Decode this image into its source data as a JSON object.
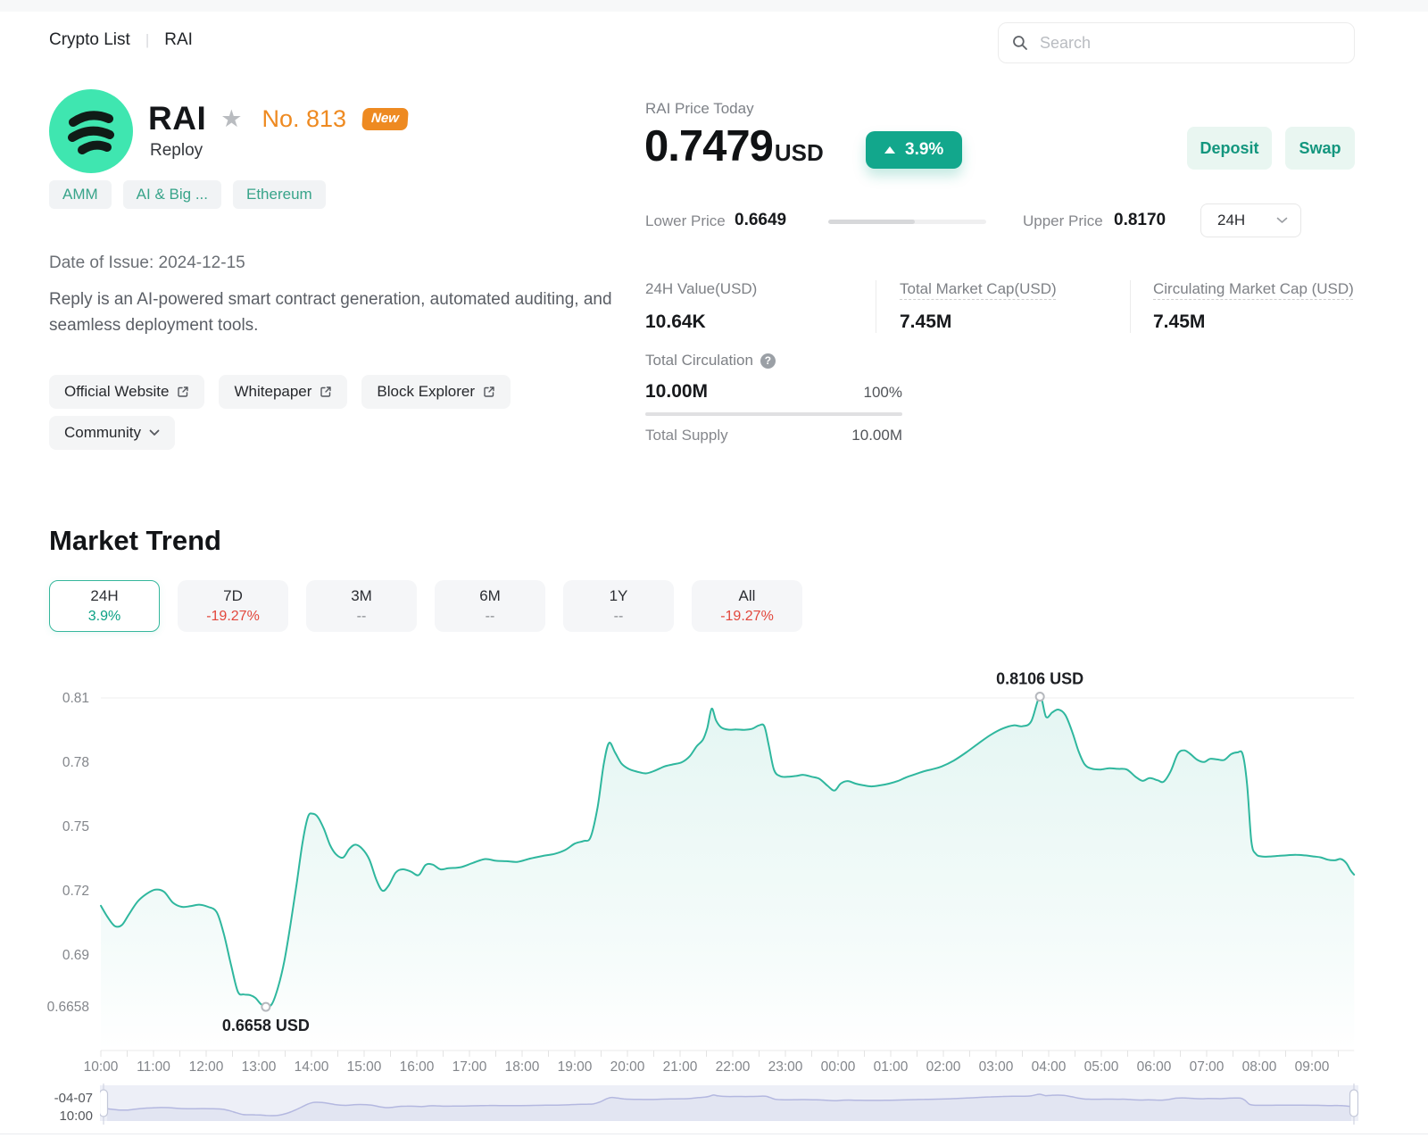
{
  "breadcrumb": {
    "root": "Crypto List",
    "divider": "|",
    "current": "RAI"
  },
  "search": {
    "placeholder": "Search"
  },
  "token": {
    "symbol": "RAI",
    "name": "Reploy",
    "rank": "No. 813",
    "new_badge": "New",
    "tags": [
      "AMM",
      "AI & Big ...",
      "Ethereum"
    ]
  },
  "price": {
    "label": "RAI Price Today",
    "value": "0.7479",
    "currency": "USD",
    "change": "3.9%",
    "change_direction": "up"
  },
  "actions": {
    "deposit": "Deposit",
    "swap": "Swap"
  },
  "range": {
    "lower_label": "Lower Price",
    "lower": "0.6649",
    "upper_label": "Upper Price",
    "upper": "0.8170",
    "period": "24H",
    "progress_pct": 55
  },
  "issue": "Date of Issue: 2024-12-15",
  "description": "Reply is an AI-powered smart contract generation, automated auditing, and seamless deployment tools.",
  "links": [
    "Official Website",
    "Whitepaper",
    "Block Explorer"
  ],
  "community_label": "Community",
  "stats": [
    {
      "label": "24H Value(USD)",
      "value": "10.64K",
      "underline": false
    },
    {
      "label": "Total Market Cap(USD)",
      "value": "7.45M",
      "underline": true
    },
    {
      "label": "Circulating Market Cap (USD)",
      "value": "7.45M",
      "underline": true
    }
  ],
  "circulation": {
    "label": "Total Circulation",
    "value": "10.00M",
    "percent": "100%",
    "percent_fill": 100,
    "supply_label": "Total Supply",
    "supply": "10.00M"
  },
  "market_trend": {
    "title": "Market Trend",
    "tabs": [
      {
        "label": "24H",
        "sub": "3.9%",
        "state": "up",
        "active": true
      },
      {
        "label": "7D",
        "sub": "-19.27%",
        "state": "down",
        "active": false
      },
      {
        "label": "3M",
        "sub": "--",
        "state": "flat",
        "active": false
      },
      {
        "label": "6M",
        "sub": "--",
        "state": "flat",
        "active": false
      },
      {
        "label": "1Y",
        "sub": "--",
        "state": "flat",
        "active": false
      },
      {
        "label": "All",
        "sub": "-19.27%",
        "state": "down",
        "active": false
      }
    ]
  },
  "chart_data": {
    "type": "area",
    "title": "RAI price, 24H",
    "xlabel": "",
    "ylabel": "USD",
    "x_unit": "minutes from 10:00",
    "x_labels": [
      "10:00",
      "11:00",
      "12:00",
      "13:00",
      "14:00",
      "15:00",
      "16:00",
      "17:00",
      "18:00",
      "19:00",
      "20:00",
      "21:00",
      "22:00",
      "23:00",
      "00:00",
      "01:00",
      "02:00",
      "03:00",
      "04:00",
      "05:00",
      "06:00",
      "07:00",
      "08:00",
      "09:00"
    ],
    "y_ticks": [
      {
        "label": "0.81",
        "value": 0.81
      },
      {
        "label": "0.78",
        "value": 0.78
      },
      {
        "label": "0.75",
        "value": 0.75
      },
      {
        "label": "0.72",
        "value": 0.72
      },
      {
        "label": "0.69",
        "value": 0.69
      },
      {
        "label": "0.6658",
        "value": 0.6658
      }
    ],
    "ylim": [
      0.6454,
      0.8225
    ],
    "grid": "top-line-only",
    "line_color": "#2fb79e",
    "min_marker": {
      "t": 188,
      "value": 0.6658,
      "label": "0.6658 USD"
    },
    "max_marker": {
      "t": 1070,
      "value": 0.8106,
      "label": "0.8106 USD"
    },
    "points": [
      [
        0,
        0.713
      ],
      [
        8,
        0.7075
      ],
      [
        16,
        0.7035
      ],
      [
        24,
        0.704
      ],
      [
        32,
        0.709
      ],
      [
        42,
        0.715
      ],
      [
        52,
        0.7185
      ],
      [
        62,
        0.7205
      ],
      [
        72,
        0.7195
      ],
      [
        82,
        0.7145
      ],
      [
        92,
        0.7125
      ],
      [
        102,
        0.7128
      ],
      [
        112,
        0.7135
      ],
      [
        122,
        0.7125
      ],
      [
        132,
        0.71
      ],
      [
        140,
        0.7
      ],
      [
        148,
        0.686
      ],
      [
        156,
        0.673
      ],
      [
        163,
        0.6716
      ],
      [
        170,
        0.6713
      ],
      [
        176,
        0.67
      ],
      [
        182,
        0.6672
      ],
      [
        188,
        0.6658
      ],
      [
        195,
        0.6672
      ],
      [
        202,
        0.675
      ],
      [
        209,
        0.687
      ],
      [
        216,
        0.704
      ],
      [
        223,
        0.723
      ],
      [
        230,
        0.743
      ],
      [
        236,
        0.7545
      ],
      [
        241,
        0.756
      ],
      [
        247,
        0.7545
      ],
      [
        254,
        0.749
      ],
      [
        261,
        0.7415
      ],
      [
        268,
        0.737
      ],
      [
        276,
        0.7355
      ],
      [
        283,
        0.7395
      ],
      [
        290,
        0.7415
      ],
      [
        298,
        0.7395
      ],
      [
        306,
        0.7345
      ],
      [
        314,
        0.725
      ],
      [
        321,
        0.72
      ],
      [
        328,
        0.7225
      ],
      [
        336,
        0.7285
      ],
      [
        344,
        0.73
      ],
      [
        353,
        0.729
      ],
      [
        362,
        0.7273
      ],
      [
        370,
        0.732
      ],
      [
        378,
        0.7322
      ],
      [
        387,
        0.73
      ],
      [
        396,
        0.7305
      ],
      [
        410,
        0.731
      ],
      [
        424,
        0.733
      ],
      [
        438,
        0.7348
      ],
      [
        450,
        0.734
      ],
      [
        462,
        0.7338
      ],
      [
        475,
        0.7335
      ],
      [
        489,
        0.735
      ],
      [
        503,
        0.7362
      ],
      [
        517,
        0.7372
      ],
      [
        529,
        0.739
      ],
      [
        540,
        0.742
      ],
      [
        550,
        0.7432
      ],
      [
        558,
        0.745
      ],
      [
        566,
        0.759
      ],
      [
        573,
        0.779
      ],
      [
        579,
        0.789
      ],
      [
        586,
        0.7845
      ],
      [
        593,
        0.7795
      ],
      [
        601,
        0.777
      ],
      [
        611,
        0.7756
      ],
      [
        621,
        0.7748
      ],
      [
        631,
        0.776
      ],
      [
        642,
        0.778
      ],
      [
        652,
        0.779
      ],
      [
        662,
        0.78
      ],
      [
        671,
        0.7828
      ],
      [
        679,
        0.7875
      ],
      [
        686,
        0.7905
      ],
      [
        691,
        0.796
      ],
      [
        696,
        0.805
      ],
      [
        701,
        0.7995
      ],
      [
        707,
        0.7962
      ],
      [
        715,
        0.7952
      ],
      [
        724,
        0.7953
      ],
      [
        733,
        0.7951
      ],
      [
        742,
        0.7956
      ],
      [
        750,
        0.7972
      ],
      [
        756,
        0.7968
      ],
      [
        761,
        0.788
      ],
      [
        767,
        0.7765
      ],
      [
        774,
        0.7735
      ],
      [
        783,
        0.7732
      ],
      [
        792,
        0.7736
      ],
      [
        801,
        0.7741
      ],
      [
        810,
        0.7732
      ],
      [
        819,
        0.7722
      ],
      [
        828,
        0.769
      ],
      [
        836,
        0.7668
      ],
      [
        843,
        0.77
      ],
      [
        851,
        0.7712
      ],
      [
        860,
        0.77
      ],
      [
        869,
        0.7692
      ],
      [
        878,
        0.7687
      ],
      [
        888,
        0.7692
      ],
      [
        898,
        0.77
      ],
      [
        908,
        0.7712
      ],
      [
        918,
        0.773
      ],
      [
        928,
        0.7744
      ],
      [
        938,
        0.7758
      ],
      [
        948,
        0.7768
      ],
      [
        958,
        0.778
      ],
      [
        972,
        0.7808
      ],
      [
        986,
        0.7846
      ],
      [
        1000,
        0.7888
      ],
      [
        1014,
        0.7928
      ],
      [
        1028,
        0.7958
      ],
      [
        1040,
        0.7972
      ],
      [
        1050,
        0.7968
      ],
      [
        1060,
        0.799
      ],
      [
        1070,
        0.8106
      ],
      [
        1077,
        0.8012
      ],
      [
        1084,
        0.8032
      ],
      [
        1091,
        0.8046
      ],
      [
        1099,
        0.802
      ],
      [
        1107,
        0.794
      ],
      [
        1114,
        0.7852
      ],
      [
        1121,
        0.779
      ],
      [
        1129,
        0.777
      ],
      [
        1139,
        0.7766
      ],
      [
        1149,
        0.7772
      ],
      [
        1159,
        0.7769
      ],
      [
        1169,
        0.7766
      ],
      [
        1179,
        0.7732
      ],
      [
        1187,
        0.7713
      ],
      [
        1195,
        0.7726
      ],
      [
        1204,
        0.7716
      ],
      [
        1211,
        0.7709
      ],
      [
        1219,
        0.7758
      ],
      [
        1227,
        0.7838
      ],
      [
        1234,
        0.7856
      ],
      [
        1241,
        0.784
      ],
      [
        1249,
        0.7812
      ],
      [
        1257,
        0.7801
      ],
      [
        1264,
        0.7816
      ],
      [
        1272,
        0.7813
      ],
      [
        1280,
        0.7811
      ],
      [
        1288,
        0.7838
      ],
      [
        1295,
        0.7846
      ],
      [
        1301,
        0.7838
      ],
      [
        1306,
        0.77
      ],
      [
        1311,
        0.743
      ],
      [
        1316,
        0.7372
      ],
      [
        1323,
        0.736
      ],
      [
        1332,
        0.736
      ],
      [
        1342,
        0.7363
      ],
      [
        1352,
        0.7366
      ],
      [
        1362,
        0.7368
      ],
      [
        1372,
        0.7365
      ],
      [
        1382,
        0.736
      ],
      [
        1390,
        0.7356
      ],
      [
        1398,
        0.7345
      ],
      [
        1406,
        0.7342
      ],
      [
        1413,
        0.7348
      ],
      [
        1419,
        0.733
      ],
      [
        1424,
        0.7295
      ],
      [
        1428,
        0.7275
      ]
    ]
  },
  "minimap": {
    "label_line1": "-04-07",
    "label_line2": "10:00",
    "bg_color": "#edeff7",
    "line_color": "#b4b8e0"
  },
  "colors": {
    "accent_teal": "#12a78c",
    "mint_button_bg": "#e9f6f1",
    "orange": "#ee8a21",
    "negative_red": "#e2473c",
    "chart_line": "#2fb79e",
    "logo_bg": "#3fe6b0"
  }
}
